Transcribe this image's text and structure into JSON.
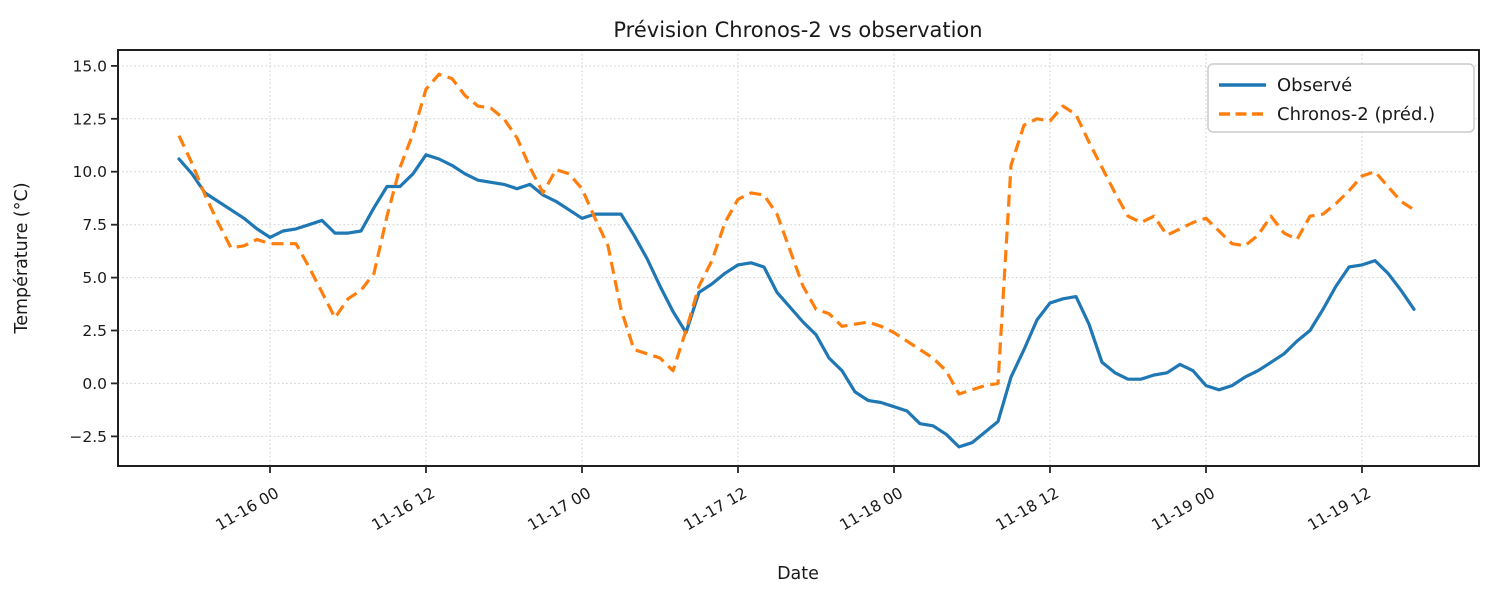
{
  "chart_data": {
    "type": "line",
    "title": "Prévision Chronos-2 vs observation",
    "xlabel": "Date",
    "ylabel": "Température (°C)",
    "grid": "dotted",
    "legend_position": "upper right",
    "ylim": [
      -3.9,
      15.75
    ],
    "y_ticks": [
      {
        "value": 15.0,
        "label": "15.0"
      },
      {
        "value": 12.5,
        "label": "12.5"
      },
      {
        "value": 10.0,
        "label": "10.0"
      },
      {
        "value": 7.5,
        "label": "7.5"
      },
      {
        "value": 5.0,
        "label": "5.0"
      },
      {
        "value": 2.5,
        "label": "2.5"
      },
      {
        "value": 0.0,
        "label": "0.0"
      },
      {
        "value": -2.5,
        "label": "−2.5"
      }
    ],
    "x_ticks": [
      {
        "index": 7,
        "label": "11-16 00"
      },
      {
        "index": 19,
        "label": "11-16 12"
      },
      {
        "index": 31,
        "label": "11-17 00"
      },
      {
        "index": 43,
        "label": "11-17 12"
      },
      {
        "index": 55,
        "label": "11-18 00"
      },
      {
        "index": 67,
        "label": "11-18 12"
      },
      {
        "index": 79,
        "label": "11-19 00"
      },
      {
        "index": 91,
        "label": "11-19 12"
      }
    ],
    "x": [
      "11-15 17",
      "11-15 18",
      "11-15 19",
      "11-15 20",
      "11-15 21",
      "11-15 22",
      "11-15 23",
      "11-16 00",
      "11-16 01",
      "11-16 02",
      "11-16 03",
      "11-16 04",
      "11-16 05",
      "11-16 06",
      "11-16 07",
      "11-16 08",
      "11-16 09",
      "11-16 10",
      "11-16 11",
      "11-16 12",
      "11-16 13",
      "11-16 14",
      "11-16 15",
      "11-16 16",
      "11-16 17",
      "11-16 18",
      "11-16 19",
      "11-16 20",
      "11-16 21",
      "11-16 22",
      "11-16 23",
      "11-17 00",
      "11-17 01",
      "11-17 02",
      "11-17 03",
      "11-17 04",
      "11-17 05",
      "11-17 06",
      "11-17 07",
      "11-17 08",
      "11-17 09",
      "11-17 10",
      "11-17 11",
      "11-17 12",
      "11-17 13",
      "11-17 14",
      "11-17 15",
      "11-17 16",
      "11-17 17",
      "11-17 18",
      "11-17 19",
      "11-17 20",
      "11-17 21",
      "11-17 22",
      "11-17 23",
      "11-18 00",
      "11-18 01",
      "11-18 02",
      "11-18 03",
      "11-18 04",
      "11-18 05",
      "11-18 06",
      "11-18 07",
      "11-18 08",
      "11-18 09",
      "11-18 10",
      "11-18 11",
      "11-18 12",
      "11-18 13",
      "11-18 14",
      "11-18 15",
      "11-18 16",
      "11-18 17",
      "11-18 18",
      "11-18 19",
      "11-18 20",
      "11-18 21",
      "11-18 22",
      "11-18 23",
      "11-19 00",
      "11-19 01",
      "11-19 02",
      "11-19 03",
      "11-19 04",
      "11-19 05",
      "11-19 06",
      "11-19 07",
      "11-19 08",
      "11-19 09",
      "11-19 10",
      "11-19 11",
      "11-19 12",
      "11-19 13",
      "11-19 14",
      "11-19 15",
      "11-19 16"
    ],
    "series": [
      {
        "name": "Observé",
        "color": "#1f77b4",
        "style": "solid",
        "values": [
          10.6,
          9.9,
          9.0,
          8.6,
          8.2,
          7.8,
          7.3,
          6.9,
          7.2,
          7.3,
          7.5,
          7.7,
          7.1,
          7.1,
          7.2,
          8.3,
          9.3,
          9.3,
          9.9,
          10.8,
          10.6,
          10.3,
          9.9,
          9.6,
          9.5,
          9.4,
          9.2,
          9.4,
          8.9,
          8.6,
          8.2,
          7.8,
          8.0,
          8.0,
          8.0,
          7.0,
          5.9,
          4.6,
          3.4,
          2.4,
          4.3,
          4.7,
          5.2,
          5.6,
          5.7,
          5.5,
          4.3,
          3.6,
          2.9,
          2.3,
          1.2,
          0.6,
          -0.4,
          -0.8,
          -0.9,
          -1.1,
          -1.3,
          -1.9,
          -2.0,
          -2.4,
          -3.0,
          -2.8,
          -2.3,
          -1.8,
          0.3,
          1.6,
          3.0,
          3.8,
          4.0,
          4.1,
          2.8,
          1.0,
          0.5,
          0.2,
          0.2,
          0.4,
          0.5,
          0.9,
          0.6,
          -0.1,
          -0.3,
          -0.1,
          0.3,
          0.6,
          1.0,
          1.4,
          2.0,
          2.5,
          3.5,
          4.6,
          5.5,
          5.6,
          5.8,
          5.2,
          4.4,
          3.5
        ]
      },
      {
        "name": "Chronos-2 (préd.)",
        "color": "#ff7f0e",
        "style": "dashed",
        "values": [
          11.7,
          10.4,
          8.9,
          7.6,
          6.4,
          6.5,
          6.8,
          6.6,
          6.6,
          6.6,
          5.5,
          4.3,
          3.1,
          4.0,
          4.4,
          5.2,
          7.9,
          10.2,
          11.8,
          13.9,
          14.6,
          14.4,
          13.6,
          13.1,
          13.0,
          12.5,
          11.6,
          10.2,
          9.0,
          10.1,
          9.9,
          9.2,
          7.8,
          6.5,
          3.5,
          1.6,
          1.4,
          1.2,
          0.6,
          2.5,
          4.6,
          5.8,
          7.6,
          8.7,
          9.0,
          8.9,
          8.0,
          6.3,
          4.6,
          3.5,
          3.3,
          2.7,
          2.8,
          2.9,
          2.7,
          2.4,
          2.0,
          1.6,
          1.2,
          0.6,
          -0.5,
          -0.3,
          -0.1,
          0.0,
          10.3,
          12.2,
          12.5,
          12.4,
          13.1,
          12.7,
          11.4,
          10.2,
          9.0,
          7.9,
          7.6,
          7.9,
          7.0,
          7.3,
          7.6,
          7.8,
          7.2,
          6.6,
          6.5,
          7.0,
          7.9,
          7.1,
          6.8,
          7.9,
          8.0,
          8.5,
          9.1,
          9.8,
          10.0,
          9.3,
          8.6,
          8.2
        ]
      }
    ]
  }
}
